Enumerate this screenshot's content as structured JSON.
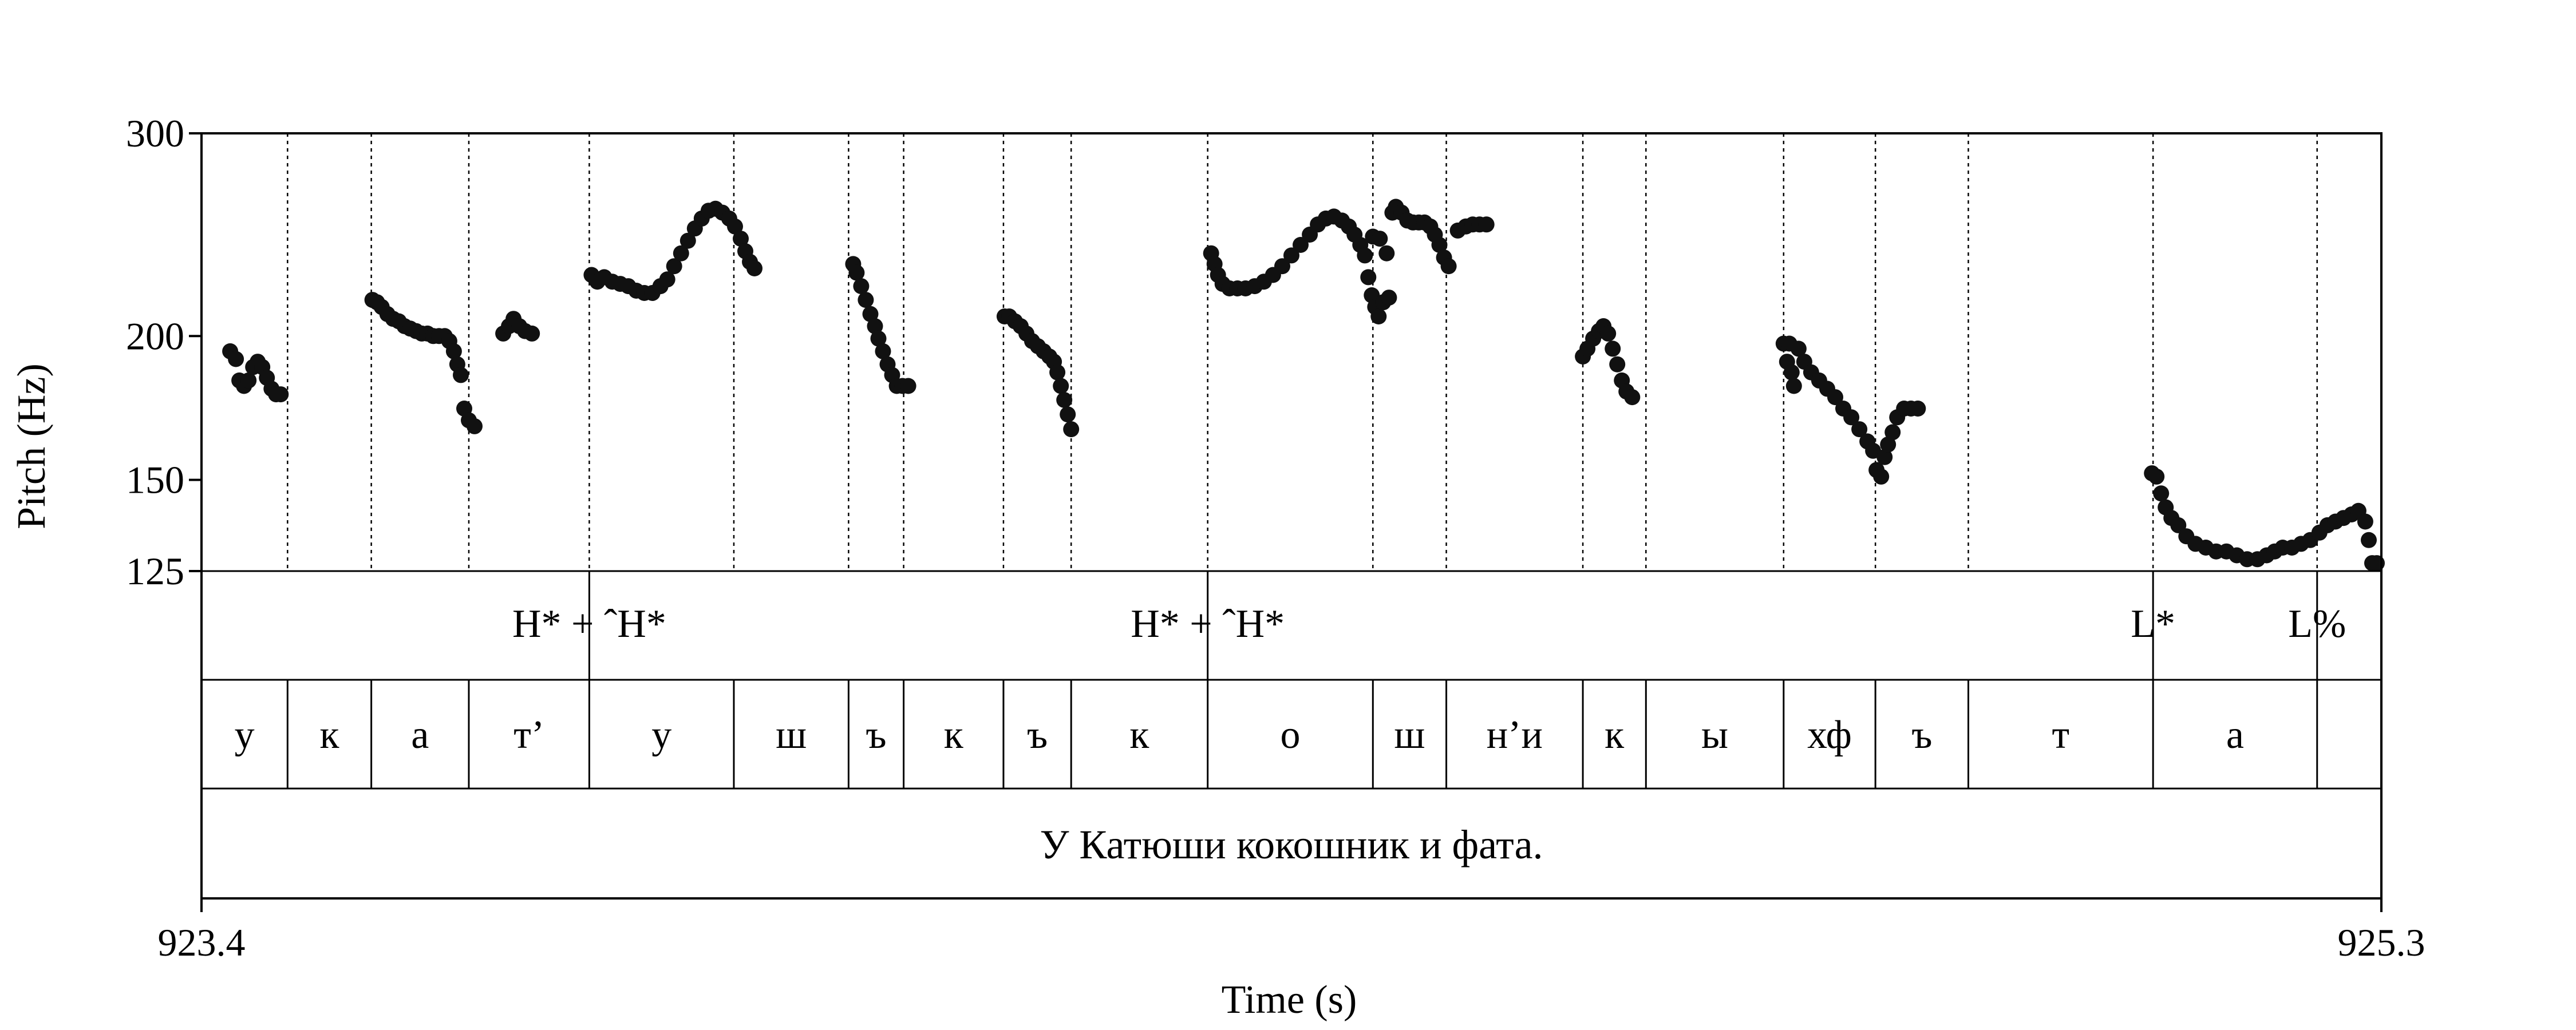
{
  "chart_data": {
    "type": "scatter",
    "xlabel": "Time (s)",
    "ylabel": "Pitch (Hz)",
    "xlim": [
      923.4,
      925.3
    ],
    "ylim": [
      125,
      300
    ],
    "yscale": "log",
    "x_ticks": [
      "923.4",
      "925.3"
    ],
    "y_ticks": [
      {
        "value": 300,
        "label": "300"
      },
      {
        "value": 200,
        "label": "200"
      },
      {
        "value": 150,
        "label": "150"
      },
      {
        "value": 125,
        "label": "125"
      }
    ],
    "boundaries": [
      923.4,
      923.475,
      923.548,
      923.633,
      923.738,
      923.864,
      923.964,
      924.012,
      924.099,
      924.158,
      924.277,
      924.421,
      924.485,
      924.604,
      924.659,
      924.779,
      924.859,
      924.94,
      925.101,
      925.244,
      925.3
    ],
    "tones": [
      {
        "t": 923.738,
        "label": "H* + ˆH*"
      },
      {
        "t": 924.277,
        "label": "H* + ˆH*"
      },
      {
        "t": 925.101,
        "label": "L*"
      },
      {
        "t": 925.244,
        "label": "L%"
      }
    ],
    "segments": [
      "у",
      "к",
      "а",
      "т’",
      "у",
      "ш",
      "ъ",
      "к",
      "ъ",
      "к",
      "о",
      "ш",
      "н’и",
      "к",
      "ы",
      "хф",
      "ъ",
      "т",
      "а"
    ],
    "sentence": "У Катюши кокошник и фата.",
    "series": [
      {
        "points": [
          [
            923.425,
            194
          ],
          [
            923.43,
            191
          ],
          [
            923.433,
            183
          ],
          [
            923.437,
            181
          ],
          [
            923.441,
            183
          ],
          [
            923.445,
            188
          ],
          [
            923.449,
            190
          ],
          [
            923.453,
            188
          ],
          [
            923.457,
            184
          ],
          [
            923.461,
            180
          ],
          [
            923.465,
            178
          ],
          [
            923.469,
            178
          ]
        ]
      },
      {
        "points": [
          [
            923.549,
            215
          ],
          [
            923.553,
            214
          ],
          [
            923.557,
            212
          ],
          [
            923.562,
            209
          ],
          [
            923.567,
            207
          ],
          [
            923.572,
            206
          ],
          [
            923.577,
            204
          ],
          [
            923.582,
            203
          ],
          [
            923.587,
            202
          ],
          [
            923.592,
            201
          ],
          [
            923.597,
            201
          ],
          [
            923.602,
            200
          ],
          [
            923.607,
            200
          ],
          [
            923.612,
            200
          ],
          [
            923.616,
            198
          ],
          [
            923.62,
            194
          ],
          [
            923.623,
            189
          ],
          [
            923.626,
            185
          ],
          [
            923.629,
            173
          ],
          [
            923.633,
            169
          ],
          [
            923.638,
            167
          ]
        ]
      },
      {
        "points": [
          [
            923.663,
            201
          ],
          [
            923.668,
            204
          ],
          [
            923.672,
            207
          ],
          [
            923.677,
            204
          ],
          [
            923.682,
            202
          ],
          [
            923.688,
            201
          ]
        ]
      },
      {
        "points": [
          [
            923.74,
            226
          ],
          [
            923.745,
            223
          ],
          [
            923.751,
            225
          ],
          [
            923.758,
            223
          ],
          [
            923.765,
            222
          ],
          [
            923.772,
            221
          ],
          [
            923.779,
            219
          ],
          [
            923.786,
            218
          ],
          [
            923.793,
            218
          ],
          [
            923.8,
            221
          ],
          [
            923.806,
            224
          ],
          [
            923.812,
            230
          ],
          [
            923.818,
            236
          ],
          [
            923.824,
            242
          ],
          [
            923.83,
            248
          ],
          [
            923.836,
            253
          ],
          [
            923.842,
            257
          ],
          [
            923.848,
            258
          ],
          [
            923.854,
            256
          ],
          [
            923.86,
            253
          ],
          [
            923.865,
            249
          ],
          [
            923.87,
            243
          ],
          [
            923.874,
            237
          ],
          [
            923.878,
            232
          ],
          [
            923.882,
            229
          ]
        ]
      },
      {
        "points": [
          [
            923.968,
            231
          ],
          [
            923.971,
            227
          ],
          [
            923.975,
            221
          ],
          [
            923.979,
            215
          ],
          [
            923.983,
            209
          ],
          [
            923.987,
            204
          ],
          [
            923.99,
            199
          ],
          [
            923.994,
            194
          ],
          [
            923.998,
            189
          ],
          [
            924.002,
            185
          ],
          [
            924.006,
            181
          ],
          [
            924.011,
            181
          ],
          [
            924.016,
            181
          ]
        ]
      },
      {
        "points": [
          [
            924.1,
            208
          ],
          [
            924.104,
            208
          ],
          [
            924.109,
            206
          ],
          [
            924.114,
            204
          ],
          [
            924.119,
            201
          ],
          [
            924.124,
            198
          ],
          [
            924.129,
            196
          ],
          [
            924.134,
            194
          ],
          [
            924.139,
            192
          ],
          [
            924.143,
            190
          ],
          [
            924.146,
            186
          ],
          [
            924.149,
            181
          ],
          [
            924.152,
            176
          ],
          [
            924.155,
            171
          ],
          [
            924.158,
            166
          ]
        ]
      },
      {
        "points": [
          [
            924.28,
            236
          ],
          [
            924.283,
            231
          ],
          [
            924.286,
            226
          ],
          [
            924.29,
            222
          ],
          [
            924.296,
            220
          ],
          [
            924.303,
            220
          ],
          [
            924.31,
            220
          ],
          [
            924.318,
            221
          ],
          [
            924.326,
            223
          ],
          [
            924.334,
            226
          ],
          [
            924.342,
            230
          ],
          [
            924.35,
            235
          ],
          [
            924.358,
            240
          ],
          [
            924.366,
            245
          ],
          [
            924.373,
            250
          ],
          [
            924.38,
            253
          ],
          [
            924.387,
            254
          ],
          [
            924.394,
            252
          ],
          [
            924.4,
            249
          ],
          [
            924.405,
            245
          ],
          [
            924.41,
            240
          ],
          [
            924.414,
            235
          ],
          [
            924.417,
            225
          ],
          [
            924.42,
            217
          ],
          [
            924.423,
            212
          ],
          [
            924.426,
            208
          ],
          [
            924.43,
            214
          ],
          [
            924.435,
            216
          ]
        ]
      },
      {
        "points": [
          [
            924.421,
            244
          ],
          [
            924.427,
            243
          ],
          [
            924.433,
            236
          ],
          [
            924.438,
            256
          ],
          [
            924.441,
            259
          ],
          [
            924.446,
            256
          ],
          [
            924.451,
            252
          ],
          [
            924.456,
            251
          ],
          [
            924.461,
            251
          ],
          [
            924.466,
            251
          ],
          [
            924.471,
            249
          ],
          [
            924.475,
            245
          ],
          [
            924.479,
            240
          ],
          [
            924.483,
            234
          ],
          [
            924.487,
            230
          ],
          [
            924.495,
            247
          ],
          [
            924.502,
            249
          ],
          [
            924.508,
            250
          ],
          [
            924.514,
            250
          ],
          [
            924.52,
            250
          ]
        ]
      },
      {
        "points": [
          [
            924.604,
            192
          ],
          [
            924.608,
            195
          ],
          [
            924.613,
            199
          ],
          [
            924.618,
            202
          ],
          [
            924.622,
            204
          ],
          [
            924.626,
            201
          ],
          [
            924.63,
            195
          ],
          [
            924.634,
            189
          ],
          [
            924.638,
            183
          ],
          [
            924.642,
            179
          ],
          [
            924.647,
            177
          ]
        ]
      },
      {
        "points": [
          [
            924.779,
            197
          ],
          [
            924.784,
            197
          ],
          [
            924.782,
            190
          ],
          [
            924.786,
            186
          ],
          [
            924.788,
            181
          ],
          [
            924.792,
            195
          ],
          [
            924.797,
            190
          ],
          [
            924.803,
            186
          ],
          [
            924.81,
            183
          ],
          [
            924.817,
            180
          ],
          [
            924.824,
            177
          ],
          [
            924.831,
            173
          ],
          [
            924.838,
            170
          ],
          [
            924.845,
            166
          ],
          [
            924.852,
            162
          ],
          [
            924.857,
            159
          ],
          [
            924.86,
            153
          ],
          [
            924.864,
            151
          ],
          [
            924.867,
            157
          ],
          [
            924.87,
            161
          ],
          [
            924.874,
            165
          ],
          [
            924.878,
            170
          ],
          [
            924.884,
            173
          ],
          [
            924.89,
            173
          ],
          [
            924.896,
            173
          ]
        ]
      },
      {
        "points": [
          [
            925.1,
            152
          ],
          [
            925.104,
            151
          ],
          [
            925.108,
            146
          ],
          [
            925.112,
            142
          ],
          [
            925.117,
            139
          ],
          [
            925.123,
            137
          ],
          [
            925.13,
            134
          ],
          [
            925.138,
            132
          ],
          [
            925.147,
            131
          ],
          [
            925.156,
            130
          ],
          [
            925.165,
            130
          ],
          [
            925.174,
            129
          ],
          [
            925.183,
            128
          ],
          [
            925.192,
            128
          ],
          [
            925.2,
            129
          ],
          [
            925.207,
            130
          ],
          [
            925.214,
            131
          ],
          [
            925.222,
            131
          ],
          [
            925.23,
            132
          ],
          [
            925.238,
            133
          ],
          [
            925.246,
            135
          ],
          [
            925.253,
            137
          ],
          [
            925.26,
            138
          ],
          [
            925.267,
            139
          ],
          [
            925.274,
            140
          ],
          [
            925.28,
            141
          ],
          [
            925.286,
            138
          ],
          [
            925.289,
            133
          ],
          [
            925.292,
            127
          ],
          [
            925.296,
            127
          ]
        ]
      }
    ]
  }
}
